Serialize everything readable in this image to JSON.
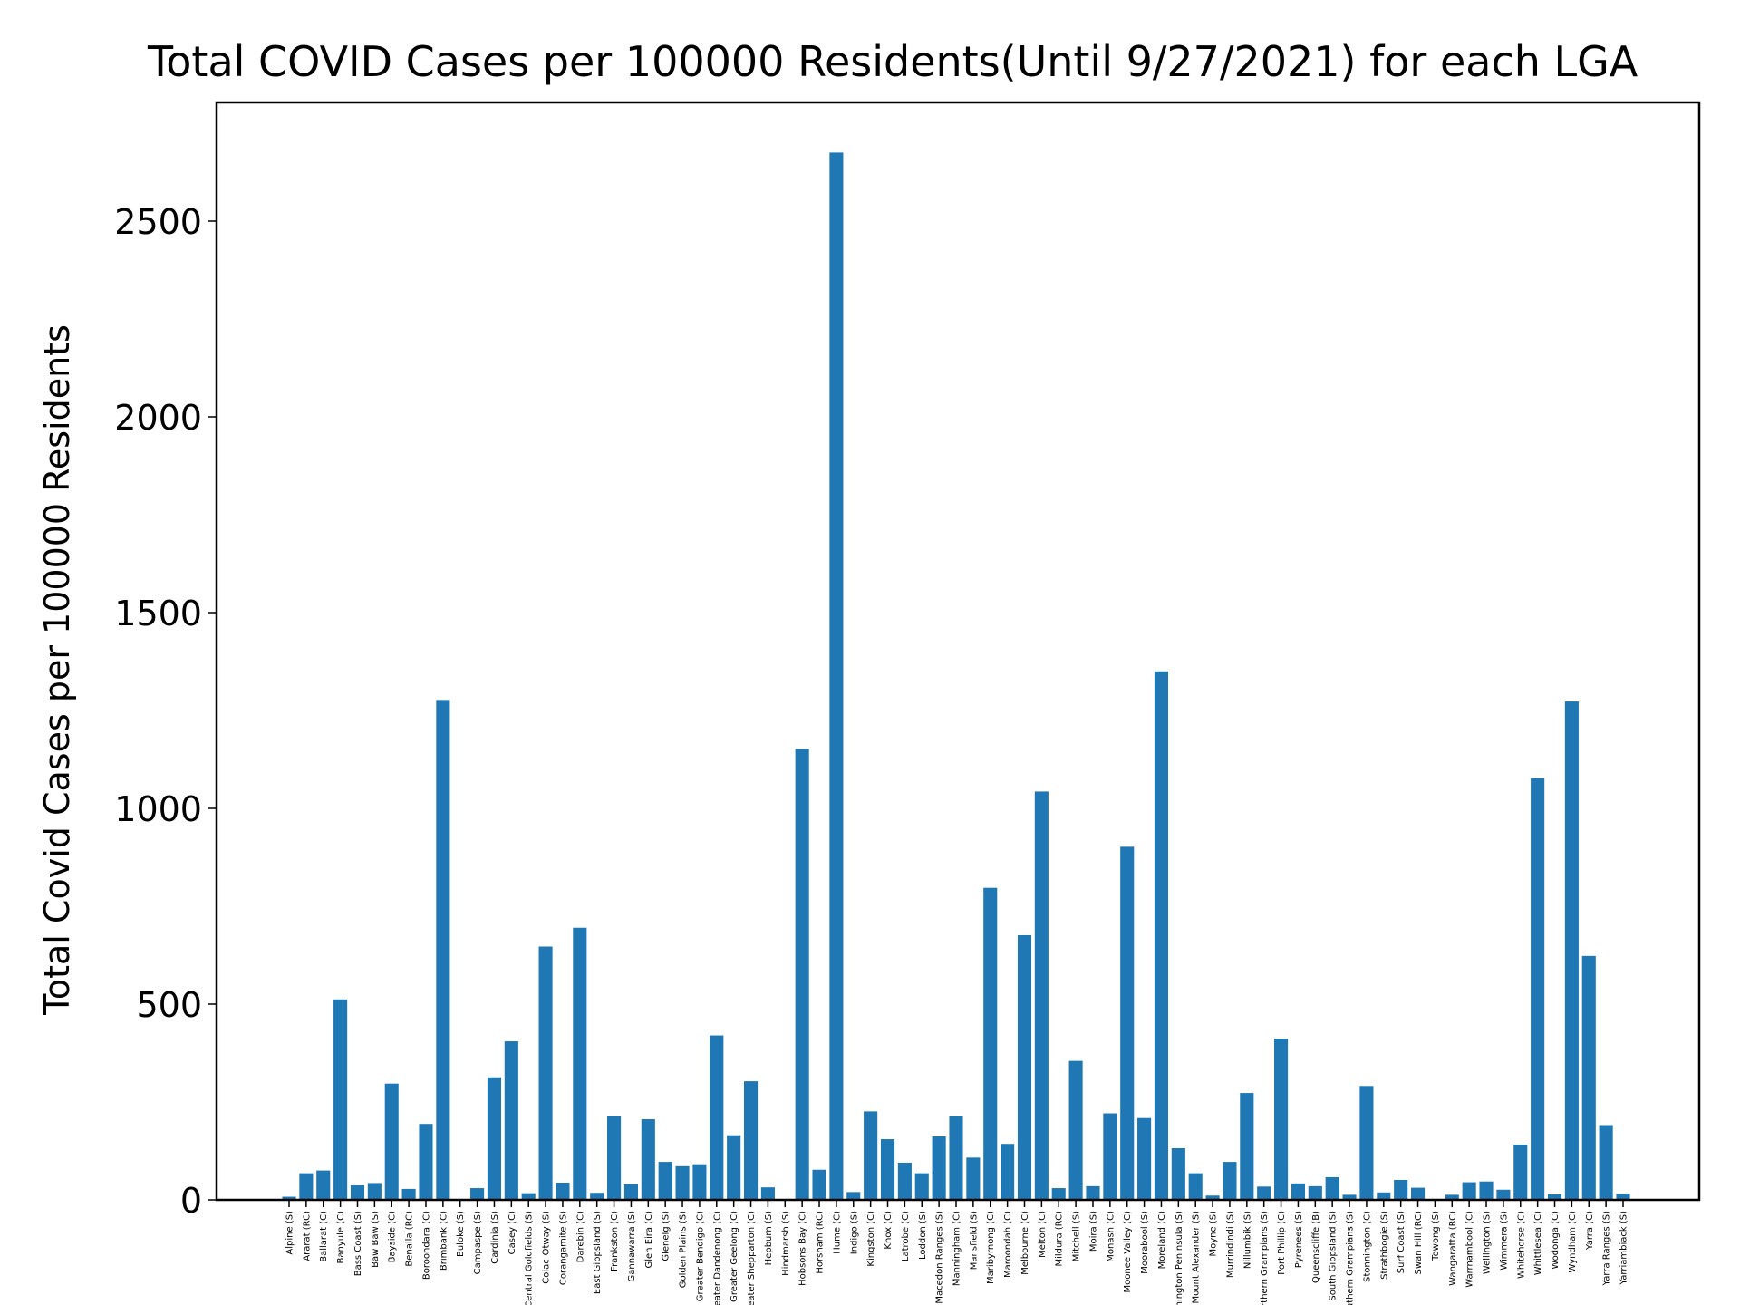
{
  "chart_data": {
    "type": "bar",
    "title": "Total COVID Cases per 100000 Residents(Until 9/27/2021) for each LGA",
    "xlabel": "",
    "ylabel": "Total Covid Cases per 100000 Residents",
    "ylim": [
      0,
      2800
    ],
    "yticks": [
      0,
      500,
      1000,
      1500,
      2000,
      2500
    ],
    "grid": false,
    "bar_color": "#1f77b4",
    "categories": [
      "Alpine (S)",
      "Ararat (RC)",
      "Ballarat (C)",
      "Banyule (C)",
      "Bass Coast (S)",
      "Baw Baw (S)",
      "Bayside (C)",
      "Benalla (RC)",
      "Boroondara (C)",
      "Brimbank (C)",
      "Buloke (S)",
      "Campaspe (S)",
      "Cardinia (S)",
      "Casey (C)",
      "Central Goldfields (S)",
      "Colac-Otway (S)",
      "Corangamite (S)",
      "Darebin (C)",
      "East Gippsland (S)",
      "Frankston (C)",
      "Gannawarra (S)",
      "Glen Eira (C)",
      "Glenelg (S)",
      "Golden Plains (S)",
      "Greater Bendigo (C)",
      "Greater Dandenong (C)",
      "Greater Geelong (C)",
      "Greater Shepparton (C)",
      "Hepburn (S)",
      "Hindmarsh (S)",
      "Hobsons Bay (C)",
      "Horsham (RC)",
      "Hume (C)",
      "Indigo (S)",
      "Kingston (C)",
      "Knox (C)",
      "Latrobe (C)",
      "Loddon (S)",
      "Macedon Ranges (S)",
      "Manningham (C)",
      "Mansfield (S)",
      "Maribyrnong (C)",
      "Maroondah (C)",
      "Melbourne (C)",
      "Melton (C)",
      "Mildura (RC)",
      "Mitchell (S)",
      "Moira (S)",
      "Monash (C)",
      "Moonee Valley (C)",
      "Moorabool (S)",
      "Moreland (C)",
      "Mornington Peninsula (S)",
      "Mount Alexander (S)",
      "Moyne (S)",
      "Murrindindi (S)",
      "Nillumbik (S)",
      "Northern Grampians (S)",
      "Port Phillip (C)",
      "Pyrenees (S)",
      "Queenscliffe (B)",
      "South Gippsland (S)",
      "Southern Grampians (S)",
      "Stonnington (C)",
      "Strathbogie (S)",
      "Surf Coast (S)",
      "Swan Hill (RC)",
      "Towong (S)",
      "Wangaratta (RC)",
      "Warrnambool (C)",
      "Wellington (S)",
      "Wimmera (S)",
      "Whitehorse (C)",
      "Whittlesea (C)",
      "Wodonga (C)",
      "Wyndham (C)",
      "Yarra (C)",
      "Yarra Ranges (S)",
      "Yarriambiack (S)"
    ],
    "values": [
      8,
      68,
      75,
      512,
      37,
      43,
      297,
      28,
      194,
      1277,
      2,
      30,
      313,
      405,
      17,
      647,
      44,
      695,
      18,
      213,
      40,
      206,
      97,
      86,
      91,
      420,
      165,
      303,
      32,
      0,
      1152,
      77,
      2675,
      20,
      226,
      155,
      95,
      68,
      162,
      213,
      108,
      797,
      143,
      676,
      1043,
      30,
      355,
      35,
      221,
      902,
      209,
      1350,
      132,
      68,
      11,
      97,
      273,
      34,
      412,
      42,
      35,
      58,
      13,
      291,
      19,
      51,
      31,
      0,
      13,
      45,
      47,
      26,
      141,
      1077,
      14,
      1273,
      623,
      191,
      16
    ]
  }
}
